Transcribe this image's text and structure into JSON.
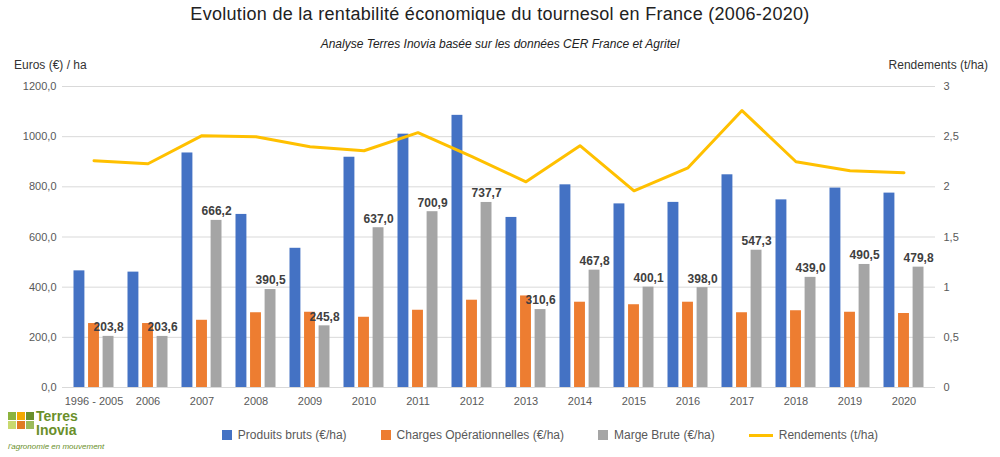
{
  "chart_data": {
    "type": "bar",
    "title": "Evolution de la rentabilité économique du tournesol en France (2006-2020)",
    "subtitle": "Analyse Terres Inovia basée sur les données CER France et Agritel",
    "y_label": "Euros (€) / ha",
    "y2_label": "Rendements (t/ha)",
    "logo": [
      "Terres",
      "Inovia",
      "l'agronomie en mouvement"
    ],
    "categories": [
      "1996 - 2005",
      "2006",
      "2007",
      "2008",
      "2009",
      "2010",
      "2011",
      "2012",
      "2013",
      "2014",
      "2015",
      "2016",
      "2017",
      "2018",
      "2019",
      "2020"
    ],
    "series": [
      {
        "name": "Produits bruts (€/ha)",
        "type": "bar",
        "color": "#4472c4",
        "values": [
          465,
          460,
          935,
          690,
          555,
          918,
          1010,
          1085,
          678,
          808,
          732,
          738,
          848,
          748,
          795,
          775
        ]
      },
      {
        "name": "Charges Opérationnelles (€/ha)",
        "type": "bar",
        "color": "#ed7d31",
        "values": [
          255,
          255,
          268,
          298,
          300,
          280,
          308,
          348,
          365,
          340,
          330,
          340,
          298,
          306,
          300,
          295
        ]
      },
      {
        "name": "Marge Brute (€/ha)",
        "type": "bar",
        "color": "#a5a5a5",
        "values": [
          203.8,
          203.6,
          666.2,
          390.5,
          245.8,
          637.0,
          700.9,
          737.7,
          310.6,
          467.8,
          400.1,
          398.0,
          547.3,
          439.0,
          490.5,
          479.8
        ],
        "value_labels": [
          "203,8",
          "203,6",
          "666,2",
          "390,5",
          "245,8",
          "637,0",
          "700,9",
          "737,7",
          "310,6",
          "467,8",
          "400,1",
          "398,0",
          "547,3",
          "439,0",
          "490,5",
          "479,8"
        ]
      },
      {
        "name": "Rendements (t/ha)",
        "type": "line",
        "axis": "y2",
        "color": "#ffc000",
        "values": [
          2.26,
          2.23,
          2.51,
          2.5,
          2.4,
          2.36,
          2.54,
          2.3,
          2.05,
          2.41,
          1.96,
          2.19,
          2.76,
          2.25,
          2.16,
          2.14
        ]
      }
    ],
    "ylim": [
      0,
      1200
    ],
    "yticks": [
      {
        "value": 0,
        "label": "0,0"
      },
      {
        "value": 200,
        "label": "200,0"
      },
      {
        "value": 400,
        "label": "400,0"
      },
      {
        "value": 600,
        "label": "600,0"
      },
      {
        "value": 800,
        "label": "800,0"
      },
      {
        "value": 1000,
        "label": "1000,0"
      },
      {
        "value": 1200,
        "label": "1200,0"
      }
    ],
    "y2lim": [
      0,
      3
    ],
    "y2ticks": [
      0,
      {
        "value": 0.5,
        "label": "0,5"
      },
      1,
      {
        "value": 1.5,
        "label": "1,5"
      },
      2,
      {
        "value": 2.5,
        "label": "2,5"
      },
      3
    ],
    "grid": true,
    "data_labels": true,
    "legend": "bottom"
  }
}
